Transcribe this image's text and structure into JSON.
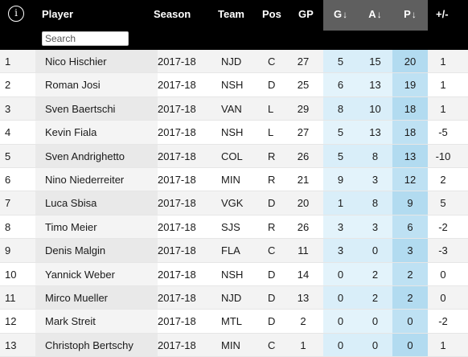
{
  "header": {
    "info_icon": "info-icon",
    "columns": {
      "player": "Player",
      "season": "Season",
      "team": "Team",
      "pos": "Pos",
      "gp": "GP",
      "g": "G",
      "a": "A",
      "p": "P",
      "plus_minus": "+/-"
    },
    "sort_arrow": "↓"
  },
  "search": {
    "placeholder": "Search",
    "value": ""
  },
  "colors": {
    "header_bg": "#000000",
    "sorted_header_bg": "#5f5f5f",
    "stat_cell_light": "#d9eef9",
    "points_cell": "#b2dbf0"
  },
  "rows": [
    {
      "rank": "1",
      "player": "Nico Hischier",
      "season": "2017-18",
      "team": "NJD",
      "pos": "C",
      "gp": "27",
      "g": "5",
      "a": "15",
      "p": "20",
      "pm": "1"
    },
    {
      "rank": "2",
      "player": "Roman Josi",
      "season": "2017-18",
      "team": "NSH",
      "pos": "D",
      "gp": "25",
      "g": "6",
      "a": "13",
      "p": "19",
      "pm": "1"
    },
    {
      "rank": "3",
      "player": "Sven Baertschi",
      "season": "2017-18",
      "team": "VAN",
      "pos": "L",
      "gp": "29",
      "g": "8",
      "a": "10",
      "p": "18",
      "pm": "1"
    },
    {
      "rank": "4",
      "player": "Kevin Fiala",
      "season": "2017-18",
      "team": "NSH",
      "pos": "L",
      "gp": "27",
      "g": "5",
      "a": "13",
      "p": "18",
      "pm": "-5"
    },
    {
      "rank": "5",
      "player": "Sven Andrighetto",
      "season": "2017-18",
      "team": "COL",
      "pos": "R",
      "gp": "26",
      "g": "5",
      "a": "8",
      "p": "13",
      "pm": "-10"
    },
    {
      "rank": "6",
      "player": "Nino Niederreiter",
      "season": "2017-18",
      "team": "MIN",
      "pos": "R",
      "gp": "21",
      "g": "9",
      "a": "3",
      "p": "12",
      "pm": "2"
    },
    {
      "rank": "7",
      "player": "Luca Sbisa",
      "season": "2017-18",
      "team": "VGK",
      "pos": "D",
      "gp": "20",
      "g": "1",
      "a": "8",
      "p": "9",
      "pm": "5"
    },
    {
      "rank": "8",
      "player": "Timo Meier",
      "season": "2017-18",
      "team": "SJS",
      "pos": "R",
      "gp": "26",
      "g": "3",
      "a": "3",
      "p": "6",
      "pm": "-2"
    },
    {
      "rank": "9",
      "player": "Denis Malgin",
      "season": "2017-18",
      "team": "FLA",
      "pos": "C",
      "gp": "11",
      "g": "3",
      "a": "0",
      "p": "3",
      "pm": "-3"
    },
    {
      "rank": "10",
      "player": "Yannick Weber",
      "season": "2017-18",
      "team": "NSH",
      "pos": "D",
      "gp": "14",
      "g": "0",
      "a": "2",
      "p": "2",
      "pm": "0"
    },
    {
      "rank": "11",
      "player": "Mirco Mueller",
      "season": "2017-18",
      "team": "NJD",
      "pos": "D",
      "gp": "13",
      "g": "0",
      "a": "2",
      "p": "2",
      "pm": "0"
    },
    {
      "rank": "12",
      "player": "Mark Streit",
      "season": "2017-18",
      "team": "MTL",
      "pos": "D",
      "gp": "2",
      "g": "0",
      "a": "0",
      "p": "0",
      "pm": "-2"
    },
    {
      "rank": "13",
      "player": "Christoph Bertschy",
      "season": "2017-18",
      "team": "MIN",
      "pos": "C",
      "gp": "1",
      "g": "0",
      "a": "0",
      "p": "0",
      "pm": "1"
    }
  ]
}
